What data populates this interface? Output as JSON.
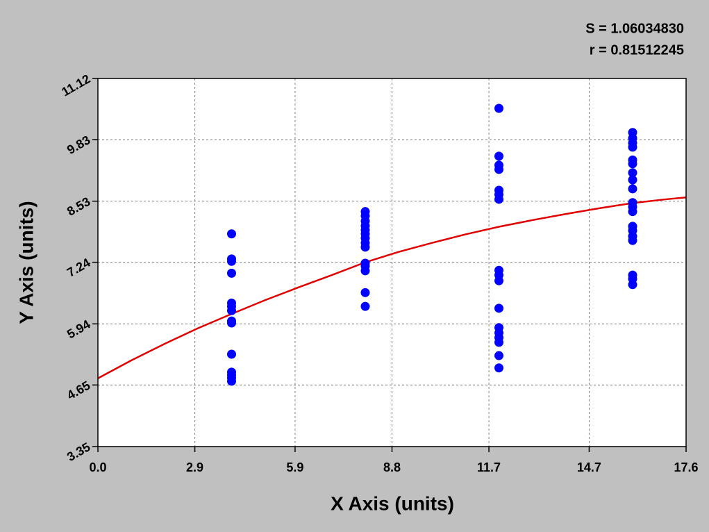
{
  "chart_data": {
    "type": "scatter",
    "xlabel": "X Axis (units)",
    "ylabel": "Y Axis (units)",
    "annotations": [
      "S = 1.06034830",
      "r = 0.81512245"
    ],
    "xlim": [
      0,
      17.6
    ],
    "ylim": [
      3.35,
      11.12
    ],
    "xticks": [
      {
        "value": 0,
        "label": "0.0"
      },
      2.9,
      5.9,
      8.8,
      11.7,
      14.7,
      17.6
    ],
    "yticks": [
      3.35,
      4.65,
      5.94,
      7.24,
      8.53,
      9.83,
      11.12
    ],
    "grid": true,
    "series": [
      {
        "color": "#0000ff",
        "x": [
          4,
          4,
          4,
          4,
          4,
          4,
          4,
          4,
          4,
          4,
          4,
          4,
          4,
          4,
          8,
          8,
          8,
          8,
          8,
          8,
          8,
          8,
          8,
          8,
          8,
          8,
          8,
          8,
          12,
          12,
          12,
          12,
          12,
          12,
          12,
          12,
          12,
          12,
          12,
          12,
          12,
          12,
          12,
          12,
          12,
          16,
          16,
          16,
          16,
          16,
          16,
          16,
          16,
          16,
          16,
          16,
          16,
          16,
          16,
          16,
          16,
          16,
          16,
          16
        ],
        "values": [
          7.84,
          7.31,
          7.26,
          7.01,
          6.38,
          6.31,
          6.22,
          6.0,
          5.96,
          5.3,
          4.92,
          4.86,
          4.8,
          4.73,
          8.31,
          8.22,
          8.11,
          8.01,
          7.92,
          7.84,
          7.75,
          7.65,
          7.56,
          7.22,
          7.16,
          7.06,
          6.6,
          6.31,
          10.49,
          9.48,
          9.29,
          9.2,
          8.76,
          8.67,
          8.57,
          7.07,
          6.97,
          6.85,
          6.27,
          5.86,
          5.75,
          5.65,
          5.55,
          5.27,
          5.01,
          9.98,
          9.86,
          9.76,
          9.67,
          9.4,
          9.32,
          9.13,
          8.98,
          8.79,
          8.5,
          8.41,
          8.31,
          8.0,
          7.91,
          7.79,
          7.7,
          6.97,
          6.89,
          6.77
        ]
      }
    ],
    "curve": {
      "color": "#e00000",
      "x": [
        0,
        1,
        2,
        3,
        4,
        5,
        6,
        7,
        8,
        9,
        10,
        11,
        12,
        13,
        14,
        15,
        16,
        17,
        17.6
      ],
      "values": [
        4.79,
        5.17,
        5.52,
        5.85,
        6.15,
        6.44,
        6.71,
        6.97,
        7.24,
        7.46,
        7.65,
        7.83,
        7.99,
        8.13,
        8.26,
        8.38,
        8.49,
        8.57,
        8.61
      ]
    }
  }
}
